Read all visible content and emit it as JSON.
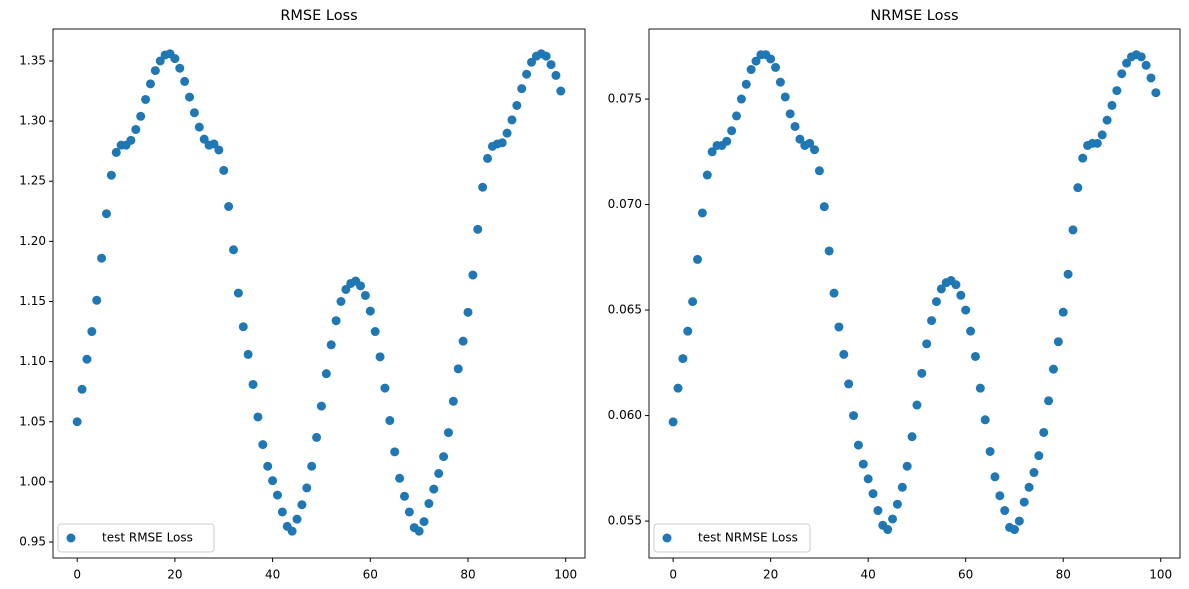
{
  "chart_data": [
    {
      "type": "scatter",
      "title": "RMSE Loss",
      "legend": "lower left",
      "series": [
        {
          "name": "test RMSE Loss",
          "color": "#1f77b4",
          "x": [
            0,
            1,
            2,
            3,
            4,
            5,
            6,
            7,
            8,
            9,
            10,
            11,
            12,
            13,
            14,
            15,
            16,
            17,
            18,
            19,
            20,
            21,
            22,
            23,
            24,
            25,
            26,
            27,
            28,
            29,
            30,
            31,
            32,
            33,
            34,
            35,
            36,
            37,
            38,
            39,
            40,
            41,
            42,
            43,
            44,
            45,
            46,
            47,
            48,
            49,
            50,
            51,
            52,
            53,
            54,
            55,
            56,
            57,
            58,
            59,
            60,
            61,
            62,
            63,
            64,
            65,
            66,
            67,
            68,
            69,
            70,
            71,
            72,
            73,
            74,
            75,
            76,
            77,
            78,
            79,
            80,
            81,
            82,
            83,
            84,
            85,
            86,
            87,
            88,
            89,
            90,
            91,
            92,
            93,
            94,
            95,
            96,
            97,
            98,
            99
          ],
          "values": [
            1.05,
            1.077,
            1.102,
            1.125,
            1.151,
            1.186,
            1.223,
            1.255,
            1.274,
            1.28,
            1.28,
            1.284,
            1.293,
            1.304,
            1.318,
            1.331,
            1.342,
            1.35,
            1.355,
            1.356,
            1.352,
            1.344,
            1.333,
            1.32,
            1.307,
            1.295,
            1.285,
            1.28,
            1.281,
            1.276,
            1.259,
            1.229,
            1.193,
            1.157,
            1.129,
            1.106,
            1.081,
            1.054,
            1.031,
            1.013,
            1.001,
            0.989,
            0.975,
            0.963,
            0.959,
            0.969,
            0.981,
            0.995,
            1.013,
            1.037,
            1.063,
            1.09,
            1.114,
            1.134,
            1.15,
            1.16,
            1.165,
            1.167,
            1.163,
            1.155,
            1.142,
            1.125,
            1.104,
            1.078,
            1.051,
            1.025,
            1.003,
            0.988,
            0.975,
            0.962,
            0.959,
            0.967,
            0.982,
            0.994,
            1.007,
            1.021,
            1.041,
            1.067,
            1.094,
            1.117,
            1.141,
            1.172,
            1.21,
            1.245,
            1.269,
            1.279,
            1.281,
            1.282,
            1.29,
            1.301,
            1.313,
            1.327,
            1.339,
            1.349,
            1.354,
            1.356,
            1.354,
            1.347,
            1.338,
            1.325
          ]
        }
      ],
      "xlim": [
        -4.95,
        103.95
      ],
      "xticks": [
        0,
        20,
        40,
        60,
        80,
        100
      ],
      "ylim": [
        0.9367,
        1.3766
      ],
      "yticks": [
        0.95,
        {
          "value": 1.0,
          "label": "1.00"
        },
        1.05,
        {
          "value": 1.1,
          "label": "1.10"
        },
        1.15,
        {
          "value": 1.2,
          "label": "1.20"
        },
        1.25,
        {
          "value": 1.3,
          "label": "1.30"
        },
        1.35
      ]
    },
    {
      "type": "scatter",
      "title": "NRMSE Loss",
      "legend": "lower left",
      "series": [
        {
          "name": "test NRMSE Loss",
          "color": "#1f77b4",
          "x": [
            0,
            1,
            2,
            3,
            4,
            5,
            6,
            7,
            8,
            9,
            10,
            11,
            12,
            13,
            14,
            15,
            16,
            17,
            18,
            19,
            20,
            21,
            22,
            23,
            24,
            25,
            26,
            27,
            28,
            29,
            30,
            31,
            32,
            33,
            34,
            35,
            36,
            37,
            38,
            39,
            40,
            41,
            42,
            43,
            44,
            45,
            46,
            47,
            48,
            49,
            50,
            51,
            52,
            53,
            54,
            55,
            56,
            57,
            58,
            59,
            60,
            61,
            62,
            63,
            64,
            65,
            66,
            67,
            68,
            69,
            70,
            71,
            72,
            73,
            74,
            75,
            76,
            77,
            78,
            79,
            80,
            81,
            82,
            83,
            84,
            85,
            86,
            87,
            88,
            89,
            90,
            91,
            92,
            93,
            94,
            95,
            96,
            97,
            98,
            99
          ],
          "values": [
            0.0597,
            0.0613,
            0.0627,
            0.064,
            0.0654,
            0.0674,
            0.0696,
            0.0714,
            0.0725,
            0.0728,
            0.0728,
            0.073,
            0.0735,
            0.0742,
            0.075,
            0.0757,
            0.0764,
            0.0768,
            0.0771,
            0.0771,
            0.0769,
            0.0765,
            0.0758,
            0.0751,
            0.0743,
            0.0737,
            0.0731,
            0.0728,
            0.0729,
            0.0726,
            0.0716,
            0.0699,
            0.0678,
            0.0658,
            0.0642,
            0.0629,
            0.0615,
            0.06,
            0.0586,
            0.0577,
            0.057,
            0.0563,
            0.0555,
            0.0548,
            0.0546,
            0.0551,
            0.0558,
            0.0566,
            0.0576,
            0.059,
            0.0605,
            0.062,
            0.0634,
            0.0645,
            0.0654,
            0.066,
            0.0663,
            0.0664,
            0.0662,
            0.0657,
            0.065,
            0.064,
            0.0628,
            0.0613,
            0.0598,
            0.0583,
            0.0571,
            0.0562,
            0.0555,
            0.0547,
            0.0546,
            0.055,
            0.0559,
            0.0566,
            0.0573,
            0.0581,
            0.0592,
            0.0607,
            0.0622,
            0.0635,
            0.0649,
            0.0667,
            0.0688,
            0.0708,
            0.0722,
            0.0728,
            0.0729,
            0.0729,
            0.0733,
            0.074,
            0.0747,
            0.0754,
            0.0762,
            0.0767,
            0.077,
            0.0771,
            0.077,
            0.0766,
            0.076,
            0.0753
          ]
        }
      ],
      "xlim": [
        -4.95,
        103.95
      ],
      "xticks": [
        0,
        20,
        40,
        60,
        80,
        100
      ],
      "ylim": [
        0.05325,
        0.07832
      ],
      "yticks": [
        0.055,
        {
          "value": 0.06,
          "label": "0.060"
        },
        0.065,
        {
          "value": 0.07,
          "label": "0.070"
        },
        0.075
      ]
    }
  ]
}
